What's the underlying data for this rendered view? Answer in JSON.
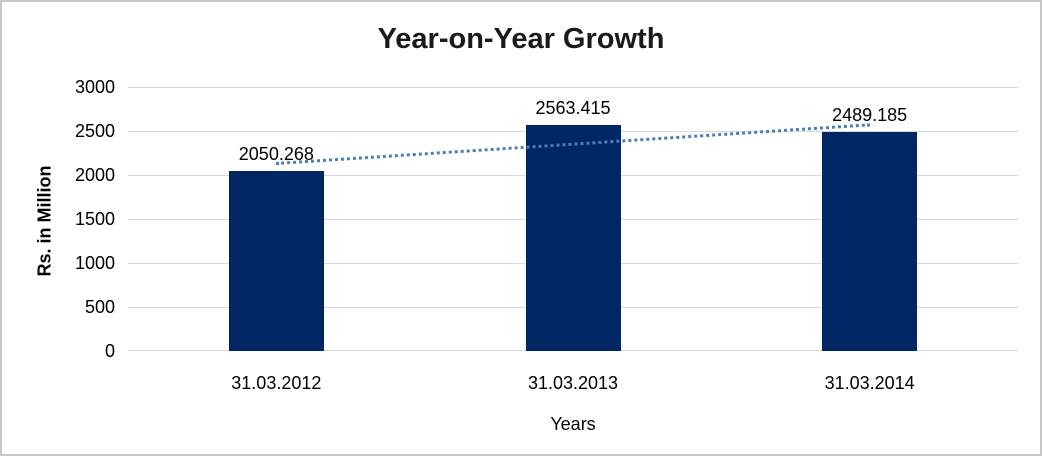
{
  "chart_data": {
    "type": "bar",
    "title": "Year-on-Year Growth",
    "xlabel": "Years",
    "ylabel": "Rs. in Million",
    "categories": [
      "31.03.2012",
      "31.03.2013",
      "31.03.2014"
    ],
    "values": [
      2050.268,
      2563.415,
      2489.185
    ],
    "data_labels": [
      "2050.268",
      "2563.415",
      "2489.185"
    ],
    "yticks": [
      0,
      500,
      1000,
      1500,
      2000,
      2500,
      3000
    ],
    "ylim": [
      0,
      3000
    ],
    "grid": true,
    "legend": false,
    "trendline": {
      "type": "linear",
      "style": "dotted"
    },
    "colors": {
      "bar": "#002663",
      "trendline": "#4a7ebb",
      "gridline": "#d9d9d9",
      "title_text": "#1a1a1a",
      "axis_text": "#000000",
      "frame_border": "#c6c6c6",
      "background": "#ffffff"
    }
  }
}
